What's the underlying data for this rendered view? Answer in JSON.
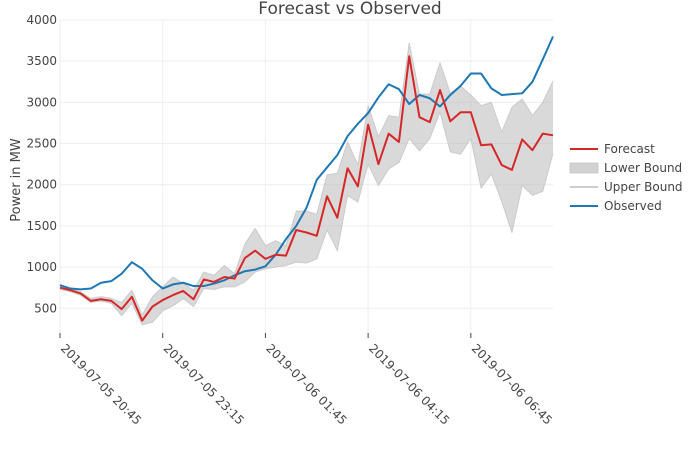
{
  "chart_data": {
    "type": "line",
    "title": "Forecast vs Observed",
    "xlabel": "",
    "ylabel": "Power in MW",
    "ylim": [
      200,
      4000
    ],
    "yticks": [
      500,
      1000,
      1500,
      2000,
      2500,
      3000,
      3500,
      4000
    ],
    "y_tick_labels": [
      "500",
      "1000",
      "1500",
      "2000",
      "2500",
      "3000",
      "3500",
      "4000"
    ],
    "x_tick_labels": [
      "2019-07-05 20:45",
      "2019-07-05 23:15",
      "2019-07-06 01:45",
      "2019-07-06 04:15",
      "2019-07-06 06:45"
    ],
    "x_tick_index": [
      0,
      10,
      20,
      30,
      40
    ],
    "grid": true,
    "legend_position": "right",
    "x": [
      "2019-07-05 20:45",
      "2019-07-05 21:00",
      "2019-07-05 21:15",
      "2019-07-05 21:30",
      "2019-07-05 21:45",
      "2019-07-05 22:00",
      "2019-07-05 22:15",
      "2019-07-05 22:30",
      "2019-07-05 22:45",
      "2019-07-05 23:00",
      "2019-07-05 23:15",
      "2019-07-05 23:30",
      "2019-07-05 23:45",
      "2019-07-06 00:00",
      "2019-07-06 00:15",
      "2019-07-06 00:30",
      "2019-07-06 00:45",
      "2019-07-06 01:00",
      "2019-07-06 01:15",
      "2019-07-06 01:30",
      "2019-07-06 01:45",
      "2019-07-06 02:00",
      "2019-07-06 02:15",
      "2019-07-06 02:30",
      "2019-07-06 02:45",
      "2019-07-06 03:00",
      "2019-07-06 03:15",
      "2019-07-06 03:30",
      "2019-07-06 03:45",
      "2019-07-06 04:00",
      "2019-07-06 04:15",
      "2019-07-06 04:30",
      "2019-07-06 04:45",
      "2019-07-06 05:00",
      "2019-07-06 05:15",
      "2019-07-06 05:30",
      "2019-07-06 05:45",
      "2019-07-06 06:00",
      "2019-07-06 06:15",
      "2019-07-06 06:30",
      "2019-07-06 06:45",
      "2019-07-06 07:00",
      "2019-07-06 07:15",
      "2019-07-06 07:30",
      "2019-07-06 07:45",
      "2019-07-06 08:00",
      "2019-07-06 08:15",
      "2019-07-06 08:30",
      "2019-07-06 08:45"
    ],
    "series": [
      {
        "name": "Observed",
        "color": "#1f77b4",
        "values": [
          780,
          740,
          730,
          740,
          810,
          830,
          920,
          1060,
          980,
          840,
          740,
          790,
          810,
          770,
          770,
          800,
          840,
          900,
          950,
          970,
          1010,
          1150,
          1340,
          1500,
          1720,
          2060,
          2210,
          2360,
          2590,
          2740,
          2870,
          3060,
          3220,
          3160,
          2980,
          3090,
          3050,
          2950,
          3090,
          3200,
          3350,
          3350,
          3170,
          3090,
          3100,
          3110,
          3250,
          3520,
          3800
        ]
      },
      {
        "name": "Forecast",
        "color": "#d62728",
        "values": [
          750,
          720,
          680,
          590,
          610,
          590,
          490,
          640,
          350,
          520,
          600,
          660,
          710,
          610,
          850,
          820,
          880,
          860,
          1110,
          1200,
          1100,
          1150,
          1140,
          1450,
          1420,
          1380,
          1860,
          1600,
          2200,
          1980,
          2730,
          2250,
          2620,
          2520,
          3560,
          2820,
          2760,
          3150,
          2770,
          2880,
          2880,
          2480,
          2490,
          2240,
          2180,
          2550,
          2420,
          2620,
          2600
        ]
      },
      {
        "name": "Lower Bound",
        "color": "#d3d3d3",
        "values": [
          730,
          700,
          660,
          570,
          590,
          560,
          410,
          560,
          300,
          330,
          470,
          530,
          620,
          520,
          740,
          730,
          760,
          760,
          820,
          940,
          980,
          1000,
          1020,
          1060,
          1050,
          1100,
          1450,
          1200,
          1870,
          1790,
          2250,
          1990,
          2190,
          2270,
          2560,
          2410,
          2560,
          2880,
          2400,
          2370,
          2560,
          1960,
          2130,
          1800,
          1420,
          1990,
          1870,
          1920,
          2380
        ]
      },
      {
        "name": "Upper Bound",
        "color": "#d3d3d3",
        "values": [
          790,
          740,
          700,
          620,
          640,
          620,
          570,
          720,
          420,
          640,
          760,
          880,
          800,
          720,
          940,
          900,
          1020,
          920,
          1280,
          1470,
          1260,
          1320,
          1260,
          1680,
          1680,
          1640,
          2120,
          2140,
          2520,
          2240,
          2960,
          2580,
          2840,
          2820,
          3720,
          3100,
          3100,
          3480,
          3110,
          3200,
          3090,
          2960,
          3000,
          2640,
          2940,
          3040,
          2840,
          3000,
          3260
        ]
      }
    ]
  }
}
